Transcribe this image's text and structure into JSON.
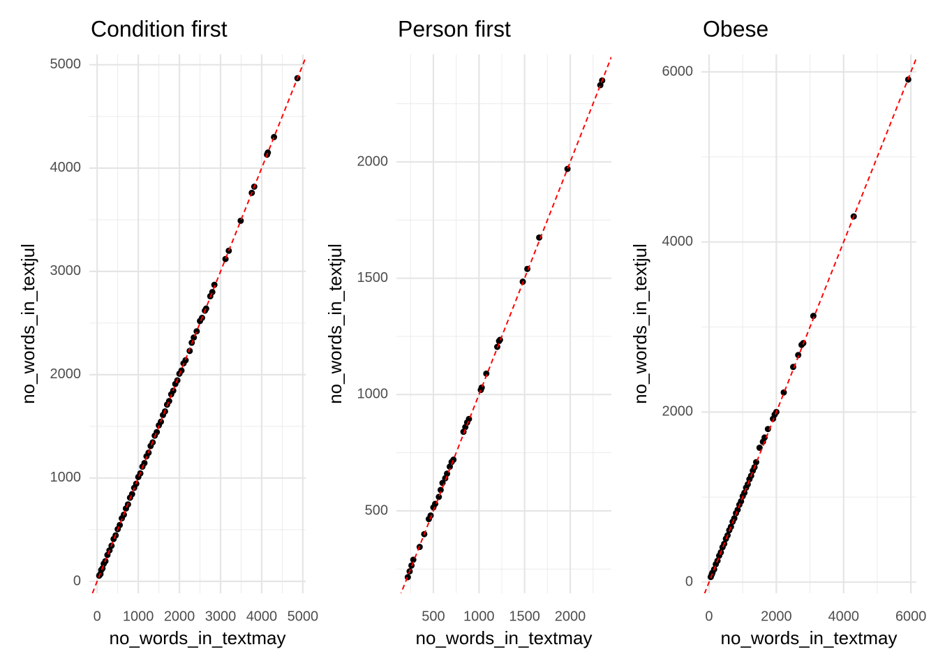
{
  "chart_data": [
    {
      "type": "scatter",
      "title": "Condition first",
      "x_label": "no_words_in_textmay",
      "y_label": "no_words_in_textjul",
      "color": "#000000",
      "grid": true,
      "xlim": [
        -190,
        5070
      ],
      "ylim": [
        -115,
        5100
      ],
      "xticks": [
        0,
        1000,
        2000,
        3000,
        4000,
        5000
      ],
      "yticks": [
        0,
        1000,
        2000,
        3000,
        4000,
        5000
      ],
      "xminor": [
        500,
        1500,
        2500,
        3500,
        4500
      ],
      "yminor": [
        500,
        1500,
        2500,
        3500,
        4500
      ],
      "reference_line": {
        "slope": 1,
        "intercept": 0,
        "color": "#ff0000"
      },
      "x": [
        50,
        80,
        100,
        130,
        160,
        200,
        250,
        300,
        350,
        400,
        450,
        500,
        550,
        600,
        650,
        700,
        750,
        800,
        850,
        900,
        950,
        1000,
        1050,
        1100,
        1150,
        1200,
        1250,
        1300,
        1350,
        1400,
        1450,
        1500,
        1550,
        1600,
        1650,
        1700,
        1750,
        1800,
        1850,
        1900,
        1950,
        2000,
        2050,
        2100,
        2150,
        2250,
        2300,
        2350,
        2420,
        2500,
        2550,
        2620,
        2650,
        2750,
        2800,
        2850,
        3120,
        3200,
        3490,
        3760,
        3820,
        4130,
        4150,
        4300,
        4870
      ],
      "values": [
        55,
        70,
        110,
        125,
        170,
        195,
        255,
        300,
        345,
        410,
        445,
        505,
        545,
        610,
        645,
        705,
        745,
        810,
        845,
        905,
        945,
        1010,
        1045,
        1110,
        1145,
        1210,
        1245,
        1310,
        1345,
        1410,
        1445,
        1510,
        1545,
        1610,
        1645,
        1710,
        1745,
        1810,
        1845,
        1910,
        1945,
        2010,
        2040,
        2110,
        2140,
        2230,
        2310,
        2360,
        2420,
        2520,
        2550,
        2620,
        2640,
        2760,
        2800,
        2870,
        3120,
        3200,
        3490,
        3760,
        3820,
        4130,
        4150,
        4300,
        4870
      ]
    },
    {
      "type": "scatter",
      "title": "Person first",
      "x_label": "no_words_in_textmay",
      "y_label": "no_words_in_textjul",
      "color": "#000000",
      "grid": true,
      "xlim": [
        95,
        2451
      ],
      "ylim": [
        146,
        2462
      ],
      "xticks": [
        500,
        1000,
        1500,
        2000
      ],
      "yticks": [
        500,
        1000,
        1500,
        2000
      ],
      "xminor": [
        250,
        750,
        1250,
        1750,
        2250
      ],
      "yminor": [
        250,
        750,
        1250,
        1750,
        2250
      ],
      "reference_line": {
        "slope": 1,
        "intercept": 0,
        "color": "#ff0000"
      },
      "x": [
        220,
        240,
        260,
        280,
        350,
        400,
        450,
        470,
        500,
        520,
        560,
        580,
        600,
        630,
        650,
        680,
        700,
        720,
        830,
        850,
        870,
        890,
        1020,
        1030,
        1080,
        1200,
        1220,
        1230,
        1480,
        1530,
        1660,
        1970,
        2330,
        2350
      ],
      "values": [
        215,
        240,
        265,
        290,
        345,
        400,
        465,
        480,
        515,
        530,
        560,
        590,
        620,
        640,
        660,
        690,
        710,
        720,
        840,
        860,
        880,
        895,
        1020,
        1030,
        1090,
        1205,
        1230,
        1235,
        1485,
        1540,
        1675,
        1970,
        2330,
        2350
      ]
    },
    {
      "type": "scatter",
      "title": "Obese",
      "x_label": "no_words_in_textmay",
      "y_label": "no_words_in_textjul",
      "color": "#000000",
      "grid": true,
      "xlim": [
        -228,
        6162
      ],
      "ylim": [
        -131,
        6205
      ],
      "xticks": [
        0,
        2000,
        4000,
        6000
      ],
      "yticks": [
        0,
        2000,
        4000,
        6000
      ],
      "xminor": [
        1000,
        3000,
        5000
      ],
      "yminor": [
        1000,
        3000,
        5000
      ],
      "reference_line": {
        "slope": 1,
        "intercept": 0,
        "color": "#ff0000"
      },
      "x": [
        50,
        80,
        100,
        150,
        200,
        250,
        300,
        350,
        400,
        450,
        500,
        550,
        600,
        650,
        700,
        750,
        800,
        850,
        900,
        950,
        1000,
        1050,
        1100,
        1150,
        1200,
        1250,
        1300,
        1350,
        1400,
        1500,
        1600,
        1650,
        1750,
        1900,
        1950,
        2000,
        2220,
        2500,
        2650,
        2750,
        2800,
        3100,
        4300,
        5920
      ],
      "values": [
        60,
        90,
        110,
        150,
        210,
        250,
        310,
        350,
        410,
        450,
        510,
        550,
        610,
        650,
        710,
        750,
        810,
        850,
        910,
        950,
        1010,
        1050,
        1110,
        1150,
        1210,
        1250,
        1310,
        1350,
        1410,
        1580,
        1650,
        1700,
        1800,
        1920,
        1970,
        2000,
        2230,
        2530,
        2670,
        2790,
        2810,
        3130,
        4300,
        5910
      ]
    }
  ]
}
